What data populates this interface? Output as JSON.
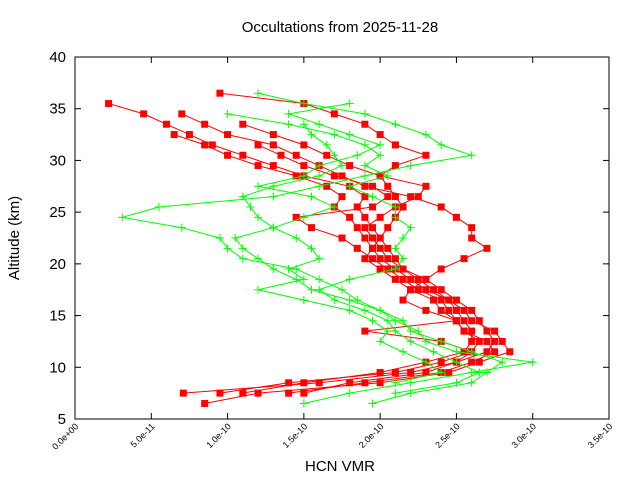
{
  "chart_data": {
    "type": "line",
    "title": "Occultations from 2025-11-28",
    "xlabel": "HCN VMR",
    "ylabel": "Altitude (km)",
    "xlim": [
      0,
      3.5e-10
    ],
    "ylim": [
      5,
      40
    ],
    "x_tick_labels": [
      "0.0e+00",
      "5.0e-11",
      "1.0e-10",
      "1.5e-10",
      "2.0e-10",
      "2.5e-10",
      "3.0e-10",
      "3.5e-10"
    ],
    "x_ticks": [
      0,
      5e-11,
      1e-10,
      1.5e-10,
      2e-10,
      2.5e-10,
      3e-10,
      3.5e-10
    ],
    "y_tick_labels": [
      "5",
      "10",
      "15",
      "20",
      "25",
      "30",
      "35",
      "40"
    ],
    "y_ticks": [
      5,
      10,
      15,
      20,
      25,
      30,
      35,
      40
    ],
    "grid": false,
    "x_unit_scale_note_free": true,
    "series": [
      {
        "color": "#ff0000",
        "marker": "square",
        "profiles": [
          {
            "alt": [
              35.5,
              34.5,
              33.5,
              32.5,
              31.5,
              30.5,
              29.5,
              28.5,
              27.5,
              26.5,
              25.5,
              24.5,
              23.5,
              22.5,
              21.5,
              20.5,
              19.5,
              18.5,
              17.5,
              16.5,
              15.5,
              14.5,
              13.5,
              12.5,
              11.5,
              10.5,
              9.5,
              8.5,
              7.5
            ],
            "vmr": [
              2.2e-11,
              4.5e-11,
              6e-11,
              7.5e-11,
              9e-11,
              1.1e-10,
              1.3e-10,
              1.5e-10,
              1.8e-10,
              1.9e-10,
              1.85e-10,
              1.9e-10,
              1.95e-10,
              2e-10,
              2.05e-10,
              2.1e-10,
              2.15e-10,
              2.3e-10,
              2.4e-10,
              2.5e-10,
              2.6e-10,
              2.65e-10,
              2.7e-10,
              2.75e-10,
              2.7e-10,
              2.5e-10,
              2.2e-10,
              1.6e-10,
              7.1e-11
            ]
          },
          {
            "alt": [
              36.5,
              35.5,
              34.5,
              33.5,
              32.5,
              31.5,
              30.5,
              29.5,
              28.5,
              27.5,
              26.5,
              25.5,
              24.5,
              23.5,
              22.5,
              21.5,
              20.5,
              19.5,
              18.5,
              17.5,
              16.5,
              15.5,
              14.5,
              13.5,
              12.5,
              11.5,
              10.5,
              9.5,
              8.5,
              7.5,
              6.5
            ],
            "vmr": [
              9.5e-11,
              1.5e-10,
              1.7e-10,
              1.9e-10,
              2e-10,
              2.1e-10,
              2.3e-10,
              2.1e-10,
              2e-10,
              2.05e-10,
              2.1e-10,
              2.15e-10,
              2.1e-10,
              2.05e-10,
              2e-10,
              1.95e-10,
              2e-10,
              2.1e-10,
              2.2e-10,
              2.3e-10,
              2.45e-10,
              2.55e-10,
              2.6e-10,
              2.75e-10,
              2.8e-10,
              2.85e-10,
              2.65e-10,
              2.45e-10,
              2e-10,
              1.2e-10,
              8.5e-11
            ]
          },
          {
            "alt": [
              34.5,
              33.5,
              32.5,
              31.5,
              30.5,
              29.5,
              28.5,
              27.5,
              26.5,
              25.5,
              24.5,
              23.5,
              22.5,
              21.5,
              20.5,
              19.5,
              18.5,
              17.5,
              16.5,
              15.5,
              14.5,
              13.5,
              12.5,
              11.5,
              10.5,
              9.5,
              8.5,
              7.5
            ],
            "vmr": [
              7e-11,
              8.5e-11,
              1e-10,
              1.3e-10,
              1.45e-10,
              1.6e-10,
              1.75e-10,
              1.9e-10,
              2.2e-10,
              2.4e-10,
              2.5e-10,
              2.6e-10,
              2.6e-10,
              2.7e-10,
              2.55e-10,
              2.4e-10,
              2.3e-10,
              2.2e-10,
              2.15e-10,
              2.3e-10,
              2.5e-10,
              1.9e-10,
              2.4e-10,
              2.6e-10,
              2.4e-10,
              2.1e-10,
              1.4e-10,
              9.5e-11
            ]
          },
          {
            "alt": [
              33.5,
              32.5,
              31.5,
              30.5,
              29.5,
              28.5,
              27.5,
              26.5,
              25.5,
              24.5,
              23.5,
              22.5,
              21.5,
              20.5,
              19.5,
              18.5,
              17.5,
              16.5,
              15.5,
              14.5,
              13.5,
              12.5,
              11.5,
              10.5,
              9.5,
              8.5,
              7.5
            ],
            "vmr": [
              1.1e-10,
              1.3e-10,
              1.5e-10,
              1.65e-10,
              1.8e-10,
              2e-10,
              2.3e-10,
              2.25e-10,
              2.1e-10,
              2e-10,
              1.9e-10,
              1.95e-10,
              2e-10,
              2.05e-10,
              2.15e-10,
              2.25e-10,
              2.35e-10,
              2.45e-10,
              2.5e-10,
              2.55e-10,
              2.6e-10,
              2.6e-10,
              2.55e-10,
              2.3e-10,
              2e-10,
              1.5e-10,
              1.1e-10
            ]
          },
          {
            "alt": [
              32.5,
              31.5,
              30.5,
              29.5,
              28.5,
              27.5,
              26.5,
              25.5,
              24.5,
              23.5,
              22.5,
              21.5,
              20.5,
              19.5,
              18.5,
              17.5,
              16.5,
              15.5,
              14.5,
              13.5,
              12.5,
              11.5,
              10.5,
              9.5,
              8.5,
              7.5
            ],
            "vmr": [
              6.5e-11,
              8.5e-11,
              1e-10,
              1.2e-10,
              1.45e-10,
              1.65e-10,
              1.75e-10,
              1.7e-10,
              1.8e-10,
              1.85e-10,
              1.9e-10,
              1.95e-10,
              1.9e-10,
              2e-10,
              2.1e-10,
              2.2e-10,
              2.35e-10,
              2.4e-10,
              2.5e-10,
              2.55e-10,
              2.65e-10,
              2.6e-10,
              2.5e-10,
              2.3e-10,
              1.8e-10,
              1.5e-10
            ]
          },
          {
            "alt": [
              31.5,
              30.5,
              29.5,
              28.5,
              27.5,
              26.5,
              25.5,
              24.5,
              23.5,
              22.5,
              21.5,
              20.5,
              19.5,
              18.5,
              17.5,
              16.5,
              15.5,
              14.5,
              13.5,
              12.5,
              11.5,
              10.5,
              9.5,
              8.5,
              7.5
            ],
            "vmr": [
              1.2e-10,
              1.35e-10,
              1.5e-10,
              1.7e-10,
              1.95e-10,
              2.05e-10,
              1.95e-10,
              1.45e-10,
              1.55e-10,
              1.75e-10,
              1.85e-10,
              1.95e-10,
              2.05e-10,
              2.15e-10,
              2.25e-10,
              2.4e-10,
              2.45e-10,
              2.5e-10,
              2.55e-10,
              2.7e-10,
              2.75e-10,
              2.6e-10,
              2.4e-10,
              1.9e-10,
              1.4e-10
            ]
          }
        ]
      },
      {
        "color": "#00ff00",
        "marker": "plus",
        "profiles": [
          {
            "alt": [
              36.5,
              35.5,
              34.5,
              33.5,
              32.5,
              31.5,
              30.5,
              29.5,
              28.5,
              27.5,
              26.5,
              25.5,
              24.5,
              23.5,
              22.5,
              21.5,
              20.5,
              19.5,
              18.5,
              17.5,
              16.5,
              15.5,
              14.5,
              13.5,
              12.5,
              11.5,
              10.5,
              9.5,
              8.5,
              7.5,
              6.5
            ],
            "vmr": [
              1.2e-10,
              1.5e-10,
              1.9e-10,
              2.1e-10,
              2.3e-10,
              2.4e-10,
              2.6e-10,
              2.2e-10,
              1.9e-10,
              1.6e-10,
              1.3e-10,
              5.5e-11,
              3.1e-11,
              7e-11,
              9.5e-11,
              1e-10,
              1.1e-10,
              1.45e-10,
              1.6e-10,
              1.75e-10,
              1.85e-10,
              2e-10,
              2.1e-10,
              2.25e-10,
              2.3e-10,
              2.5e-10,
              3e-10,
              2.6e-10,
              2.2e-10,
              1.8e-10,
              1.5e-10
            ]
          },
          {
            "alt": [
              35.5,
              34.5,
              33.5,
              32.5,
              31.5,
              30.5,
              29.5,
              28.5,
              27.5,
              26.5,
              25.5,
              24.5,
              23.5,
              22.5,
              21.5,
              20.5,
              19.5,
              18.5,
              17.5,
              16.5,
              15.5,
              14.5,
              13.5,
              12.5,
              11.5,
              10.5,
              9.5,
              8.5,
              7.5,
              6.5
            ],
            "vmr": [
              1.8e-10,
              1.4e-10,
              1.6e-10,
              1.8e-10,
              2e-10,
              1.85e-10,
              1.6e-10,
              1.5e-10,
              1.2e-10,
              1.55e-10,
              1.7e-10,
              1.5e-10,
              1.3e-10,
              1.05e-10,
              1.1e-10,
              1.2e-10,
              1.3e-10,
              1.45e-10,
              1.55e-10,
              1.8e-10,
              2e-10,
              2.15e-10,
              2.2e-10,
              2.4e-10,
              2.6e-10,
              2.8e-10,
              2.7e-10,
              2.6e-10,
              2.2e-10,
              1.95e-10
            ]
          },
          {
            "alt": [
              34.5,
              33.5,
              32.5,
              31.5,
              30.5,
              29.5,
              28.5,
              27.5,
              26.5,
              25.5,
              24.5,
              23.5,
              22.5,
              21.5,
              20.5,
              19.5,
              18.5,
              17.5,
              16.5,
              15.5,
              14.5,
              13.5,
              12.5,
              11.5,
              10.5,
              9.5,
              8.5,
              7.5
            ],
            "vmr": [
              1e-10,
              1.4e-10,
              1.7e-10,
              1.9e-10,
              2e-10,
              1.9e-10,
              2.05e-10,
              1.8e-10,
              1.95e-10,
              2.1e-10,
              2.1e-10,
              2.2e-10,
              2.15e-10,
              2.1e-10,
              2.15e-10,
              2.1e-10,
              1.8e-10,
              1.6e-10,
              1.7e-10,
              1.9e-10,
              2.05e-10,
              2.1e-10,
              2.2e-10,
              2.35e-10,
              2.5e-10,
              2.65e-10,
              2.5e-10,
              2.1e-10
            ]
          },
          {
            "alt": [
              33.5,
              32.5,
              31.5,
              30.5,
              29.5,
              28.5,
              27.5,
              26.5,
              25.5,
              24.5,
              23.5,
              22.5,
              21.5,
              20.5,
              19.5,
              18.5,
              17.5,
              16.5,
              15.5,
              14.5,
              13.5,
              12.5,
              11.5,
              10.5,
              9.5,
              8.5
            ],
            "vmr": [
              1.5e-10,
              1.55e-10,
              1.65e-10,
              1.7e-10,
              1.75e-10,
              1.6e-10,
              1.3e-10,
              1.1e-10,
              1.15e-10,
              1.2e-10,
              1.3e-10,
              1.45e-10,
              1.55e-10,
              1.6e-10,
              1.4e-10,
              1.5e-10,
              1.2e-10,
              1.5e-10,
              1.8e-10,
              1.95e-10,
              2.05e-10,
              2e-10,
              2.15e-10,
              2.3e-10,
              2.4e-10,
              2.1e-10
            ]
          }
        ]
      }
    ]
  }
}
